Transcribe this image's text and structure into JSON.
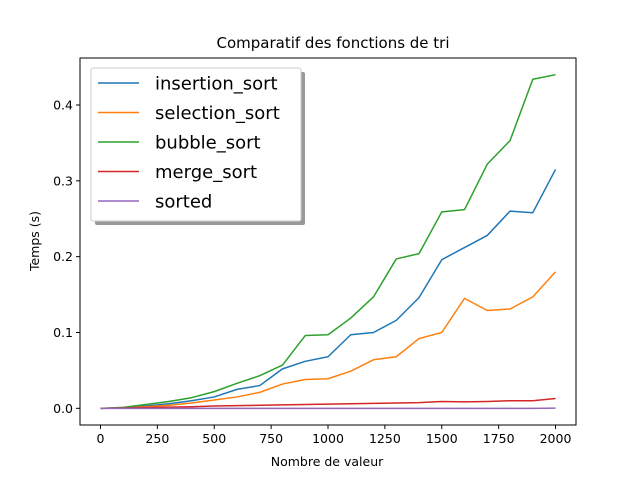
{
  "chart_data": {
    "type": "line",
    "title": "Comparatif des fonctions de tri",
    "xlabel": "Nombre de valeur",
    "ylabel": "Temps (s)",
    "xlim": [
      -90,
      2090
    ],
    "ylim": [
      -0.022,
      0.462
    ],
    "xticks": [
      0,
      250,
      500,
      750,
      1000,
      1250,
      1500,
      1750,
      2000
    ],
    "xtick_labels": [
      "0",
      "250",
      "500",
      "750",
      "1000",
      "1250",
      "1500",
      "1750",
      "2000"
    ],
    "yticks": [
      0.0,
      0.1,
      0.2,
      0.3,
      0.4
    ],
    "ytick_labels": [
      "0.0",
      "0.1",
      "0.2",
      "0.3",
      "0.4"
    ],
    "grid": false,
    "legend_position": "top-left",
    "x": [
      0,
      100,
      200,
      300,
      400,
      500,
      600,
      700,
      800,
      900,
      1000,
      1100,
      1200,
      1300,
      1400,
      1500,
      1600,
      1700,
      1800,
      1900,
      2000
    ],
    "series": [
      {
        "name": "insertion_sort",
        "color": "#1f77b4",
        "values": [
          0.0,
          0.0008,
          0.003,
          0.006,
          0.01,
          0.015,
          0.025,
          0.03,
          0.052,
          0.062,
          0.068,
          0.097,
          0.1,
          0.116,
          0.146,
          0.196,
          0.212,
          0.228,
          0.26,
          0.258,
          0.315
        ]
      },
      {
        "name": "selection_sort",
        "color": "#ff7f0e",
        "values": [
          0.0,
          0.0005,
          0.002,
          0.004,
          0.007,
          0.011,
          0.015,
          0.021,
          0.032,
          0.038,
          0.039,
          0.049,
          0.064,
          0.068,
          0.092,
          0.1,
          0.145,
          0.129,
          0.131,
          0.147,
          0.18
        ]
      },
      {
        "name": "bubble_sort",
        "color": "#2ca02c",
        "values": [
          0.0,
          0.0012,
          0.005,
          0.009,
          0.014,
          0.022,
          0.033,
          0.043,
          0.057,
          0.096,
          0.097,
          0.119,
          0.147,
          0.197,
          0.204,
          0.259,
          0.262,
          0.322,
          0.353,
          0.434,
          0.44
        ]
      },
      {
        "name": "merge_sort",
        "color": "#d62728",
        "values": [
          0.0,
          0.0004,
          0.001,
          0.0015,
          0.002,
          0.003,
          0.0035,
          0.004,
          0.0045,
          0.005,
          0.0055,
          0.006,
          0.0065,
          0.007,
          0.0075,
          0.009,
          0.0085,
          0.009,
          0.01,
          0.01,
          0.013
        ]
      },
      {
        "name": "sorted",
        "color": "#9467bd",
        "values": [
          0.0,
          0.0,
          0.0,
          0.0,
          0.0,
          0.0,
          0.0,
          0.0,
          0.0,
          0.0,
          0.0,
          0.0,
          0.0,
          0.0,
          0.0,
          0.0,
          0.0,
          0.0,
          0.0,
          0.0,
          0.0003
        ]
      }
    ]
  }
}
